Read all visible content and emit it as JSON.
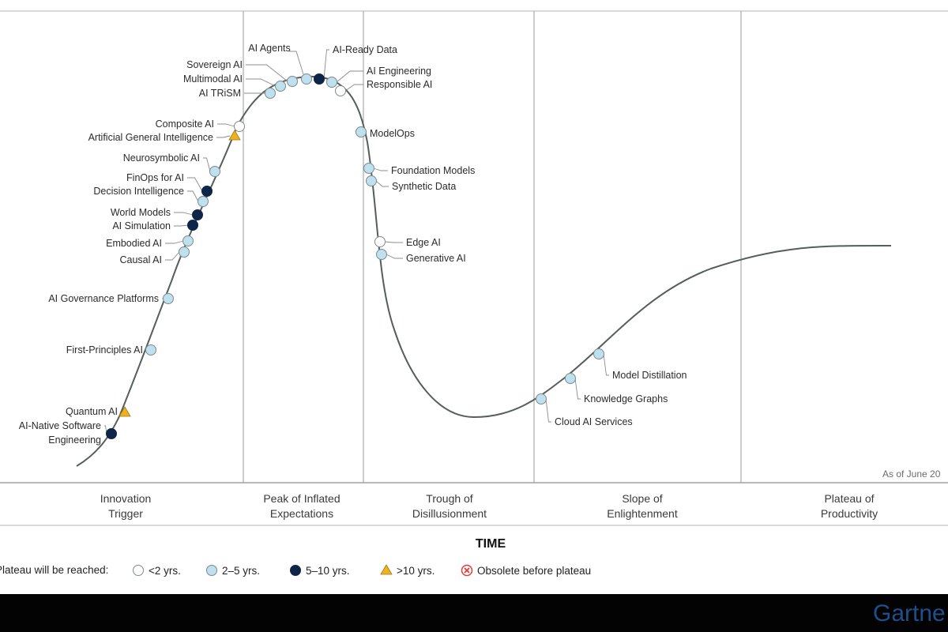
{
  "axis_label": "TIME",
  "as_of": "As of June 20",
  "brand": "Gartne",
  "colors": {
    "lt2": "#ffffff",
    "y2to5": "#bfe0ee",
    "y5to10": "#0f2548",
    "gt10": "#f2b01e",
    "obsolete": "#e23b3b",
    "curve": "#555e5c",
    "grid": "#9a9a9a"
  },
  "phases": [
    {
      "line1": "Innovation",
      "line2": "Trigger"
    },
    {
      "line1": "Peak of Inflated",
      "line2": "Expectations"
    },
    {
      "line1": "Trough of",
      "line2": "Disillusionment"
    },
    {
      "line1": "Slope of",
      "line2": "Enlightenment"
    },
    {
      "line1": "Plateau of",
      "line2": "Productivity"
    }
  ],
  "legend": {
    "title": "Plateau will be reached:",
    "items": [
      {
        "label": "<2 yrs.",
        "category": "lt2"
      },
      {
        "label": "2–5 yrs.",
        "category": "y2to5"
      },
      {
        "label": "5–10 yrs.",
        "category": "y5to10"
      },
      {
        "label": ">10 yrs.",
        "category": "gt10"
      },
      {
        "label": "Obsolete before plateau",
        "category": "obsolete"
      }
    ]
  },
  "technologies": [
    {
      "name": "AI-Native Software Engineering",
      "category": "y5to10",
      "phase": "Innovation Trigger"
    },
    {
      "name": "Quantum AI",
      "category": "gt10",
      "phase": "Innovation Trigger"
    },
    {
      "name": "First-Principles AI",
      "category": "y2to5",
      "phase": "Innovation Trigger"
    },
    {
      "name": "AI Governance Platforms",
      "category": "y2to5",
      "phase": "Innovation Trigger"
    },
    {
      "name": "Causal AI",
      "category": "y2to5",
      "phase": "Innovation Trigger"
    },
    {
      "name": "Embodied AI",
      "category": "y2to5",
      "phase": "Innovation Trigger"
    },
    {
      "name": "AI Simulation",
      "category": "y5to10",
      "phase": "Innovation Trigger"
    },
    {
      "name": "World Models",
      "category": "y5to10",
      "phase": "Innovation Trigger"
    },
    {
      "name": "Decision Intelligence",
      "category": "y2to5",
      "phase": "Innovation Trigger"
    },
    {
      "name": "FinOps for AI",
      "category": "y5to10",
      "phase": "Innovation Trigger"
    },
    {
      "name": "Neurosymbolic AI",
      "category": "y2to5",
      "phase": "Innovation Trigger"
    },
    {
      "name": "Artificial General Intelligence",
      "category": "gt10",
      "phase": "Innovation Trigger"
    },
    {
      "name": "Composite AI",
      "category": "lt2",
      "phase": "Peak of Inflated Expectations"
    },
    {
      "name": "AI TRiSM",
      "category": "y2to5",
      "phase": "Peak of Inflated Expectations"
    },
    {
      "name": "Multimodal AI",
      "category": "y2to5",
      "phase": "Peak of Inflated Expectations"
    },
    {
      "name": "Sovereign AI",
      "category": "y2to5",
      "phase": "Peak of Inflated Expectations"
    },
    {
      "name": "AI Agents",
      "category": "y2to5",
      "phase": "Peak of Inflated Expectations"
    },
    {
      "name": "AI-Ready Data",
      "category": "y5to10",
      "phase": "Peak of Inflated Expectations"
    },
    {
      "name": "AI Engineering",
      "category": "y2to5",
      "phase": "Peak of Inflated Expectations"
    },
    {
      "name": "Responsible AI",
      "category": "lt2",
      "phase": "Peak of Inflated Expectations"
    },
    {
      "name": "ModelOps",
      "category": "y2to5",
      "phase": "Trough of Disillusionment"
    },
    {
      "name": "Foundation Models",
      "category": "y2to5",
      "phase": "Trough of Disillusionment"
    },
    {
      "name": "Synthetic Data",
      "category": "y2to5",
      "phase": "Trough of Disillusionment"
    },
    {
      "name": "Edge AI",
      "category": "lt2",
      "phase": "Trough of Disillusionment"
    },
    {
      "name": "Generative AI",
      "category": "y2to5",
      "phase": "Trough of Disillusionment"
    },
    {
      "name": "Cloud AI Services",
      "category": "y2to5",
      "phase": "Slope of Enlightenment"
    },
    {
      "name": "Knowledge Graphs",
      "category": "y2to5",
      "phase": "Slope of Enlightenment"
    },
    {
      "name": "Model Distillation",
      "category": "y2to5",
      "phase": "Slope of Enlightenment"
    }
  ]
}
